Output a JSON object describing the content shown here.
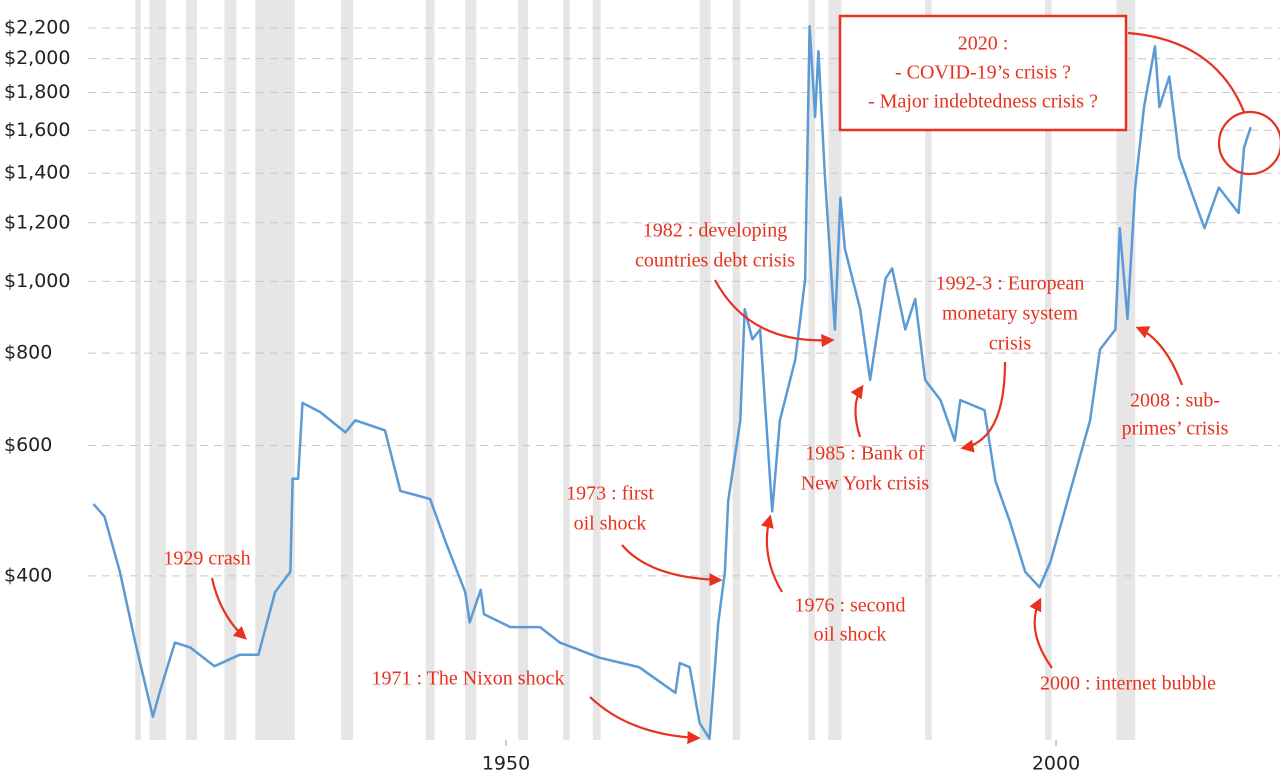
{
  "chart_data": {
    "type": "line",
    "log_y": true,
    "grid": true,
    "xlim": [
      1912,
      2019
    ],
    "ylim": [
      240,
      2400
    ],
    "xticks": [
      1950,
      2000
    ],
    "yticks": [
      {
        "value": 400,
        "label": "$400"
      },
      {
        "value": 600,
        "label": "$600"
      },
      {
        "value": 800,
        "label": "$800"
      },
      {
        "value": 1000,
        "label": "$1,000"
      },
      {
        "value": 1200,
        "label": "$1,200"
      },
      {
        "value": 1400,
        "label": "$1,400"
      },
      {
        "value": 1600,
        "label": "$1,600"
      },
      {
        "value": 1800,
        "label": "$1,800"
      },
      {
        "value": 2000,
        "label": "$2,000"
      },
      {
        "value": 2200,
        "label": "$2,200"
      }
    ],
    "recession_color": "#e6e6e6",
    "recessions": [
      [
        1916.3,
        1916.8
      ],
      [
        1917.6,
        1919.1
      ],
      [
        1920.9,
        1921.9
      ],
      [
        1924.4,
        1925.5
      ],
      [
        1927.2,
        1930.8
      ],
      [
        1935.0,
        1936.1
      ],
      [
        1942.7,
        1943.5
      ],
      [
        1946.3,
        1947.3
      ],
      [
        1951.1,
        1952.0
      ],
      [
        1955.2,
        1955.8
      ],
      [
        1957.9,
        1958.6
      ],
      [
        1967.6,
        1968.6
      ],
      [
        1970.6,
        1971.3
      ],
      [
        1977.5,
        1978.1
      ],
      [
        1979.3,
        1980.5
      ],
      [
        1988.1,
        1988.7
      ],
      [
        1999.0,
        1999.6
      ],
      [
        2005.5,
        2007.2
      ]
    ],
    "x": [
      1912.5,
      1913.5,
      1914.9,
      1916.3,
      1917.9,
      1918.5,
      1919.9,
      1921.3,
      1923.5,
      1925.8,
      1927.5,
      1929,
      1930.4,
      1930.6,
      1931.1,
      1931.5,
      1933.1,
      1935.4,
      1936.3,
      1939,
      1940.4,
      1943.1,
      1944.5,
      1946.3,
      1946.7,
      1947.7,
      1948,
      1950.4,
      1953.1,
      1954.9,
      1958.5,
      1962.1,
      1965.4,
      1965.8,
      1966.7,
      1967.6,
      1968.5,
      1969.3,
      1969.9,
      1970.2,
      1971.3,
      1971.7,
      1972.4,
      1973.1,
      1974.2,
      1974.9,
      1976.3,
      1977.2,
      1977.6,
      1978.1,
      1978.4,
      1979,
      1979.9,
      1980.4,
      1980.8,
      1982.2,
      1983.1,
      1984.5,
      1985.1,
      1986.3,
      1987.2,
      1988.1,
      1989.5,
      1990.8,
      1991.3,
      1993.5,
      1994.5,
      1995.8,
      1997.2,
      1998.5,
      1999.5,
      2001.3,
      2003.1,
      2004,
      2005.4,
      2005.8,
      2006.5,
      2007.2,
      2008,
      2009,
      2009.4,
      2010.3,
      2011.2,
      2012.5,
      2013.5,
      2014.8,
      2016.6,
      2017.1,
      2017.7
    ],
    "series": [
      {
        "color": "#5b9bd5",
        "values": [
          500,
          481,
          405,
          325,
          258,
          278,
          325,
          320,
          302,
          313,
          313,
          380,
          405,
          541,
          541,
          685,
          666,
          625,
          649,
          629,
          521,
          508,
          445,
          380,
          346,
          383,
          355,
          341,
          341,
          325,
          310,
          301,
          278,
          305,
          301,
          253,
          241,
          346,
          405,
          505,
          649,
          917,
          835,
          861,
          489,
          649,
          784,
          1008,
          2213,
          1668,
          2046,
          1381,
          861,
          1297,
          1108,
          917,
          736,
          1008,
          1041,
          861,
          947,
          736,
          691,
          609,
          691,
          670,
          537,
          474,
          405,
          386,
          418,
          521,
          649,
          809,
          861,
          1180,
          890,
          1339,
          1720,
          2078,
          1720,
          1891,
          1471,
          1297,
          1180,
          1339,
          1237,
          1517,
          1616
        ]
      }
    ],
    "annotations": [
      [
        "1929 crash"
      ],
      [
        "1971 : The Nixon shock"
      ],
      [
        "1973 : first",
        "oil shock"
      ],
      [
        "1976 : second",
        "oil shock"
      ],
      [
        "1982 : developing",
        "countries debt crisis"
      ],
      [
        "1985 : Bank of",
        "New York crisis"
      ],
      [
        "1992-3 : European",
        "monetary system",
        "crisis"
      ],
      [
        "2008 : sub-",
        "primes’ crisis"
      ],
      [
        "2000 : internet bubble"
      ],
      [
        "2020 :",
        "- COVID-19’s crisis ?",
        "- Major indebtedness crisis ?"
      ]
    ],
    "annotation_color": "#e8321f"
  }
}
